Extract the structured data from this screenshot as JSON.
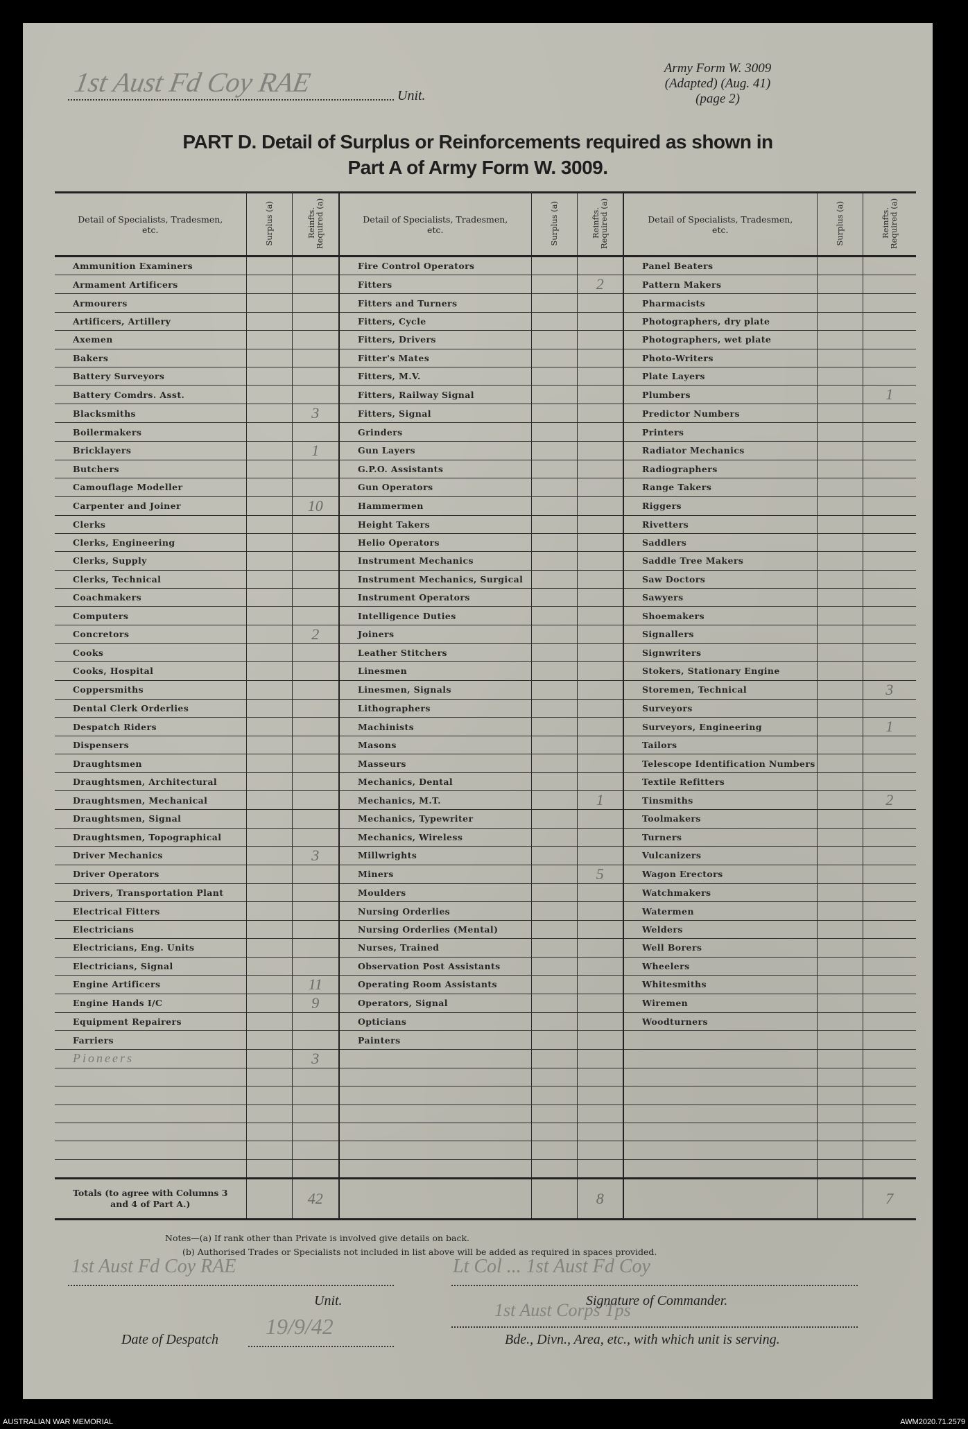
{
  "header": {
    "unit_handwritten": "1st Aust Fd Coy RAE",
    "unit_label": "Unit.",
    "form_ref": [
      "Army Form W. 3009",
      "(Adapted) (Aug. 41)",
      "(page 2)"
    ],
    "title_line1": "PART D.   Detail of Surplus or Reinforcements required as shown in",
    "title_line2": "Part A of Army Form W. 3009."
  },
  "table": {
    "col_headers": {
      "detail": "Detail of Specialists, Tradesmen, etc.",
      "surplus": "Surplus (a)",
      "reinf": "Reinfts. Required (a)"
    },
    "columns": [
      {
        "rows": [
          {
            "name": "Ammunition Examiners"
          },
          {
            "name": "Armament Artificers"
          },
          {
            "name": "Armourers"
          },
          {
            "name": "Artificers, Artillery"
          },
          {
            "name": "Axemen"
          },
          {
            "name": "Bakers"
          },
          {
            "name": "Battery Surveyors"
          },
          {
            "name": "Battery Comdrs. Asst."
          },
          {
            "name": "Blacksmiths",
            "reinf": "3"
          },
          {
            "name": "Boilermakers"
          },
          {
            "name": "Bricklayers",
            "reinf": "1"
          },
          {
            "name": "Butchers"
          },
          {
            "name": "Camouflage Modeller"
          },
          {
            "name": "Carpenter and Joiner",
            "reinf": "10"
          },
          {
            "name": "Clerks"
          },
          {
            "name": "Clerks, Engineering"
          },
          {
            "name": "Clerks, Supply"
          },
          {
            "name": "Clerks, Technical"
          },
          {
            "name": "Coachmakers"
          },
          {
            "name": "Computers"
          },
          {
            "name": "Concretors",
            "reinf": "2"
          },
          {
            "name": "Cooks"
          },
          {
            "name": "Cooks, Hospital"
          },
          {
            "name": "Coppersmiths"
          },
          {
            "name": "Dental Clerk Orderlies"
          },
          {
            "name": "Despatch Riders"
          },
          {
            "name": "Dispensers"
          },
          {
            "name": "Draughtsmen"
          },
          {
            "name": "Draughtsmen, Architectural"
          },
          {
            "name": "Draughtsmen, Mechanical"
          },
          {
            "name": "Draughtsmen, Signal"
          },
          {
            "name": "Draughtsmen, Topographical"
          },
          {
            "name": "Driver Mechanics",
            "reinf": "3"
          },
          {
            "name": "Driver Operators"
          },
          {
            "name": "Drivers, Transportation Plant"
          },
          {
            "name": "Electrical Fitters"
          },
          {
            "name": "Electricians"
          },
          {
            "name": "Electricians, Eng. Units"
          },
          {
            "name": "Electricians, Signal"
          },
          {
            "name": "Engine Artificers",
            "reinf": "11"
          },
          {
            "name": "Engine Hands I/C",
            "reinf": "9"
          },
          {
            "name": "Equipment Repairers"
          },
          {
            "name": "Farriers"
          },
          {
            "name": "Pioneers",
            "reinf": "3",
            "handwritten": true
          }
        ],
        "total": "42"
      },
      {
        "rows": [
          {
            "name": "Fire Control Operators"
          },
          {
            "name": "Fitters",
            "reinf": "2"
          },
          {
            "name": "Fitters and Turners"
          },
          {
            "name": "Fitters, Cycle"
          },
          {
            "name": "Fitters, Drivers"
          },
          {
            "name": "Fitter's Mates"
          },
          {
            "name": "Fitters, M.V."
          },
          {
            "name": "Fitters, Railway Signal"
          },
          {
            "name": "Fitters, Signal"
          },
          {
            "name": "Grinders"
          },
          {
            "name": "Gun Layers"
          },
          {
            "name": "G.P.O. Assistants"
          },
          {
            "name": "Gun Operators"
          },
          {
            "name": "Hammermen"
          },
          {
            "name": "Height Takers"
          },
          {
            "name": "Helio Operators"
          },
          {
            "name": "Instrument Mechanics"
          },
          {
            "name": "Instrument Mechanics, Surgical"
          },
          {
            "name": "Instrument Operators"
          },
          {
            "name": "Intelligence Duties"
          },
          {
            "name": "Joiners"
          },
          {
            "name": "Leather Stitchers"
          },
          {
            "name": "Linesmen"
          },
          {
            "name": "Linesmen, Signals"
          },
          {
            "name": "Lithographers"
          },
          {
            "name": "Machinists"
          },
          {
            "name": "Masons"
          },
          {
            "name": "Masseurs"
          },
          {
            "name": "Mechanics, Dental"
          },
          {
            "name": "Mechanics, M.T.",
            "reinf": "1"
          },
          {
            "name": "Mechanics, Typewriter"
          },
          {
            "name": "Mechanics, Wireless"
          },
          {
            "name": "Millwrights"
          },
          {
            "name": "Miners",
            "reinf": "5"
          },
          {
            "name": "Moulders"
          },
          {
            "name": "Nursing Orderlies"
          },
          {
            "name": "Nursing Orderlies (Mental)"
          },
          {
            "name": "Nurses, Trained"
          },
          {
            "name": "Observation Post Assistants"
          },
          {
            "name": "Operating Room Assistants"
          },
          {
            "name": "Operators, Signal"
          },
          {
            "name": "Opticians"
          },
          {
            "name": "Painters"
          }
        ],
        "total": "8"
      },
      {
        "rows": [
          {
            "name": "Panel Beaters"
          },
          {
            "name": "Pattern Makers"
          },
          {
            "name": "Pharmacists"
          },
          {
            "name": "Photographers, dry plate"
          },
          {
            "name": "Photographers, wet plate"
          },
          {
            "name": "Photo-Writers"
          },
          {
            "name": "Plate Layers"
          },
          {
            "name": "Plumbers",
            "reinf": "1"
          },
          {
            "name": "Predictor Numbers"
          },
          {
            "name": "Printers"
          },
          {
            "name": "Radiator Mechanics"
          },
          {
            "name": "Radiographers"
          },
          {
            "name": "Range Takers"
          },
          {
            "name": "Riggers"
          },
          {
            "name": "Rivetters"
          },
          {
            "name": "Saddlers"
          },
          {
            "name": "Saddle Tree Makers"
          },
          {
            "name": "Saw Doctors"
          },
          {
            "name": "Sawyers"
          },
          {
            "name": "Shoemakers"
          },
          {
            "name": "Signallers"
          },
          {
            "name": "Signwriters"
          },
          {
            "name": "Stokers, Stationary Engine"
          },
          {
            "name": "Storemen, Technical",
            "reinf": "3"
          },
          {
            "name": "Surveyors"
          },
          {
            "name": "Surveyors, Engineering",
            "reinf": "1"
          },
          {
            "name": "Tailors"
          },
          {
            "name": "Telescope Identification Numbers"
          },
          {
            "name": "Textile Refitters"
          },
          {
            "name": "Tinsmiths",
            "reinf": "2"
          },
          {
            "name": "Toolmakers"
          },
          {
            "name": "Turners"
          },
          {
            "name": "Vulcanizers"
          },
          {
            "name": "Wagon Erectors"
          },
          {
            "name": "Watchmakers"
          },
          {
            "name": "Watermen"
          },
          {
            "name": "Welders"
          },
          {
            "name": "Well Borers"
          },
          {
            "name": "Wheelers"
          },
          {
            "name": "Whitesmiths"
          },
          {
            "name": "Wiremen"
          },
          {
            "name": "Woodturners"
          }
        ],
        "total": "7"
      }
    ],
    "totals_label": "Totals (to agree with Columns 3 and 4 of Part A.)"
  },
  "notes": {
    "a": "Notes—(a) If rank other than Private is involved give details on back.",
    "b": "(b) Authorised Trades or Specialists not included in list above will be added as required in spaces provided."
  },
  "footer_form": {
    "unit_handwritten": "1st Aust Fd Coy RAE",
    "unit_label": "Unit.",
    "signature_handwritten": "Lt Col ... 1st Aust Fd Coy",
    "signature_label": "Signature of Commander.",
    "bde_handwritten": "1st Aust Corps Tps",
    "bde_label": "Bde., Divn., Area, etc., with which unit is serving.",
    "date_label": "Date of Despatch",
    "date_value": "19/9/42"
  },
  "archive": {
    "left": "AUSTRALIAN WAR MEMORIAL",
    "right": "AWM2020.71.2579"
  }
}
